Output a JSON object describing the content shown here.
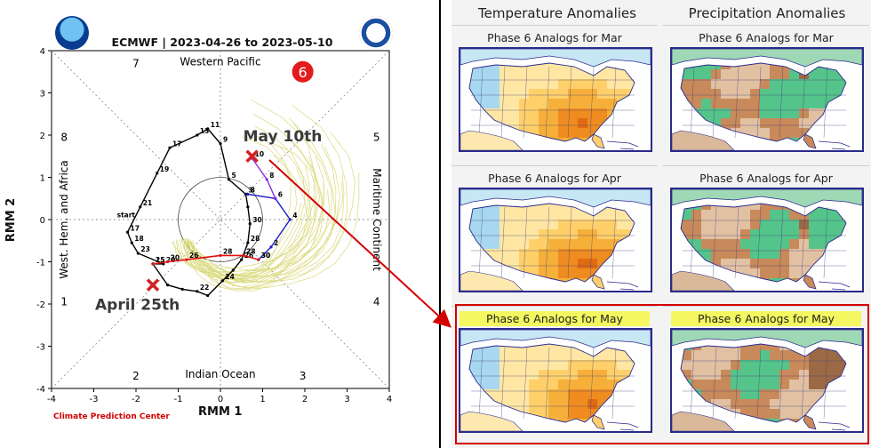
{
  "chart_data": {
    "type": "line",
    "title": "ECMWF | 2023-04-26 to 2023-05-10",
    "xlabel": "RMM 1",
    "ylabel": "RMM 2",
    "xlim": [
      -4,
      4
    ],
    "ylim": [
      -4,
      4
    ],
    "x_ticks": [
      "-4",
      "-3",
      "-2",
      "-1",
      "0",
      "1",
      "2",
      "3",
      "4"
    ],
    "y_ticks": [
      "-4",
      "-3",
      "-2",
      "-1",
      "0",
      "1",
      "2",
      "3",
      "4"
    ],
    "phase_numbers": [
      "1",
      "2",
      "3",
      "4",
      "5",
      "6",
      "7",
      "8"
    ],
    "region_labels": {
      "top": "Western Pacific",
      "bottom": "Indian Ocean",
      "left": "West. Hem. and Africa",
      "right": "Maritime Continent"
    },
    "series": [
      {
        "role": "observed",
        "color": "#000000",
        "points": [
          [
            -1.6,
            -1.05,
            "15"
          ],
          [
            -1.25,
            -1.55,
            ""
          ],
          [
            -0.9,
            -1.65,
            ""
          ],
          [
            -0.55,
            -1.7,
            "22"
          ],
          [
            -0.3,
            -1.8,
            ""
          ],
          [
            0.05,
            -1.45,
            "24"
          ],
          [
            0.3,
            -1.2,
            ""
          ],
          [
            0.5,
            -0.95,
            "26"
          ],
          [
            0.65,
            -0.55,
            "28"
          ],
          [
            0.7,
            -0.1,
            "30"
          ],
          [
            0.65,
            0.3,
            ""
          ],
          [
            0.6,
            0.6,
            "3"
          ],
          [
            0.2,
            0.95,
            "5"
          ],
          [
            0,
            1.8,
            "9"
          ],
          [
            -0.3,
            2.15,
            "11"
          ],
          [
            -0.55,
            2.0,
            "13"
          ],
          [
            -1.2,
            1.7,
            "17"
          ],
          [
            -1.5,
            1.1,
            "19"
          ],
          [
            -1.9,
            0.3,
            "21"
          ],
          [
            -2.2,
            -0.3,
            "17"
          ],
          [
            -2.1,
            -0.55,
            "18"
          ],
          [
            -1.95,
            -0.8,
            "23"
          ],
          [
            -1.35,
            -1.05,
            "20"
          ],
          [
            -1.6,
            -1.05,
            ""
          ]
        ]
      },
      {
        "role": "forecast",
        "color": "#2020d0",
        "points": [
          [
            0.65,
            0.6,
            "3"
          ],
          [
            1.3,
            0.5,
            "6"
          ],
          [
            1.65,
            0.0,
            "4"
          ],
          [
            1.2,
            -0.65,
            "2"
          ],
          [
            0.9,
            -0.95,
            "30"
          ]
        ]
      },
      {
        "role": "forecast",
        "color": "#8a2be2",
        "points": [
          [
            0.75,
            1.45,
            "10"
          ],
          [
            1.1,
            0.95,
            "8"
          ],
          [
            1.3,
            0.5,
            ""
          ]
        ]
      },
      {
        "role": "ensemble-mean",
        "color": "#e01010",
        "points": [
          [
            -1.6,
            -1.05,
            "25"
          ],
          [
            -1.25,
            -1.0,
            "20"
          ],
          [
            -0.8,
            -0.95,
            "26"
          ],
          [
            0.0,
            -0.85,
            "28"
          ],
          [
            0.55,
            -0.85,
            "28"
          ],
          [
            0.9,
            -0.95,
            "30"
          ]
        ]
      }
    ],
    "markers": [
      {
        "label": "April 25th",
        "x": -1.6,
        "y": -1.55
      },
      {
        "label": "May 10th",
        "x": 0.75,
        "y": 1.5
      }
    ],
    "highlight_phase": "6"
  },
  "footer": "Climate Prediction Center",
  "right_panel": {
    "headers": [
      "Temperature Anomalies",
      "Precipitation Anomalies"
    ],
    "rows": [
      {
        "left": "Phase 6 Analogs for  Mar",
        "right": "Phase 6 Analogs for  Mar"
      },
      {
        "left": "Phase 6 Analogs for Apr",
        "right": "Phase 6 Analogs for Apr"
      },
      {
        "left": "Phase 6 Analogs for  May",
        "right": "Phase 6 Analogs for  May"
      }
    ]
  },
  "colors": {
    "temp_warm": "#f0a020",
    "temp_cool": "#a8d8f0",
    "precip_dry": "#c88a5a",
    "precip_wet": "#55c48a",
    "arrow": "#d40000",
    "highlight": "#f4f75f"
  }
}
